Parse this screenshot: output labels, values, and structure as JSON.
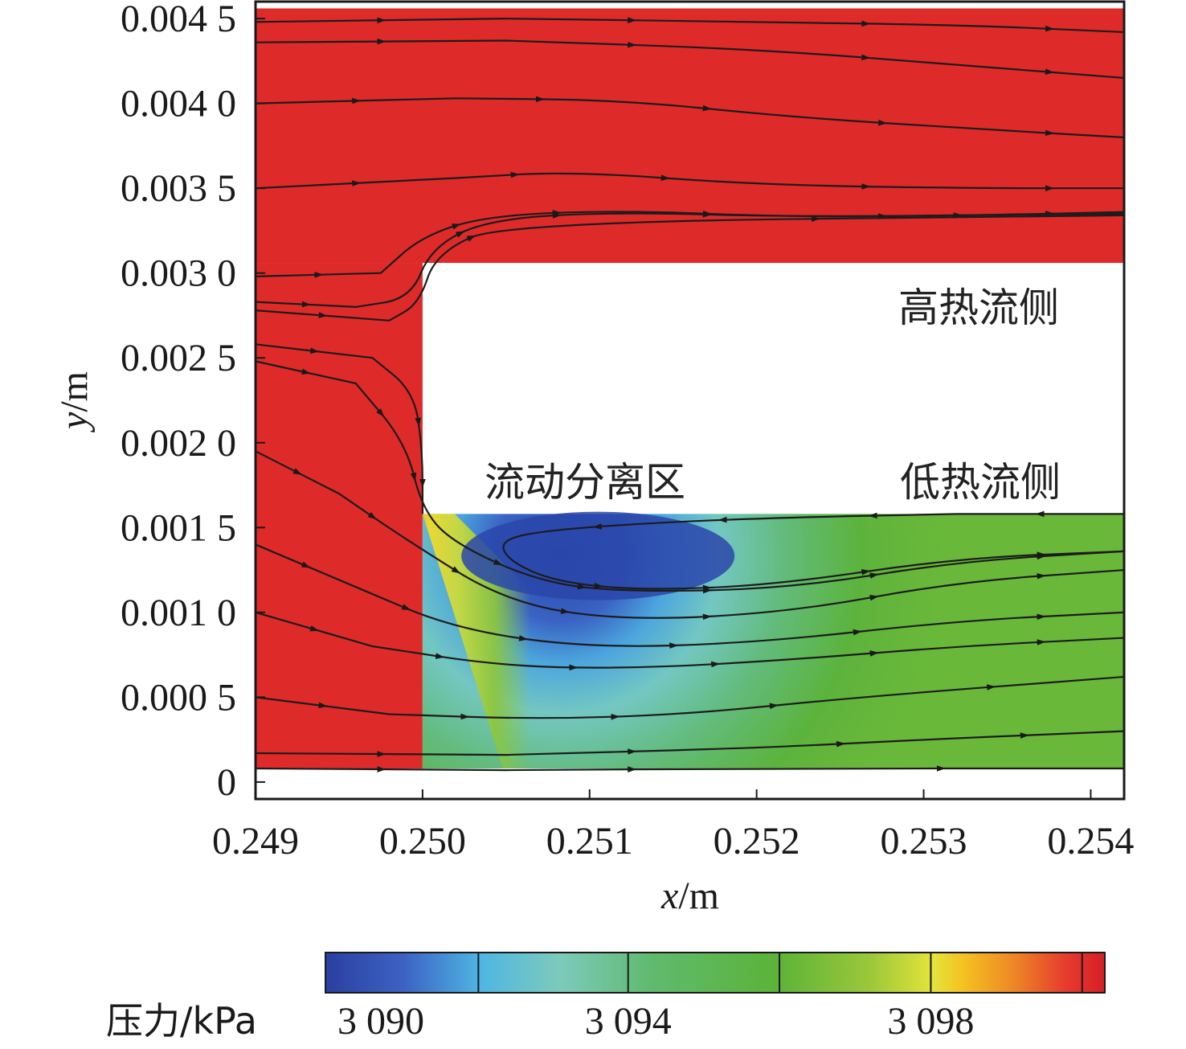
{
  "chart_data": {
    "type": "contour",
    "xlabel_var": "x",
    "xlabel_unit": "/m",
    "ylabel_var": "y",
    "ylabel_unit": "/m",
    "x_ticks": [
      "0.249",
      "0.250",
      "0.251",
      "0.252",
      "0.253",
      "0.254"
    ],
    "x_tick_values": [
      0.249,
      0.25,
      0.251,
      0.252,
      0.253,
      0.254
    ],
    "xlim": [
      0.249,
      0.2542
    ],
    "y_ticks": [
      "0",
      "0.000 5",
      "0.001 0",
      "0.001 5",
      "0.002 0",
      "0.002 5",
      "0.003 0",
      "0.003 5",
      "0.004 0",
      "0.004 5"
    ],
    "y_tick_values": [
      0,
      0.0005,
      0.001,
      0.0015,
      0.002,
      0.0025,
      0.003,
      0.0035,
      0.004,
      0.0045
    ],
    "ylim": [
      -0.0001,
      0.0046
    ],
    "annotations": [
      "高热流侧",
      "流动分离区",
      "低热流侧"
    ],
    "colorbar": {
      "title": "压力/kPa",
      "tick_labels": [
        "3 090",
        "3 094",
        "3 098"
      ],
      "tick_values": [
        3090,
        3094,
        3098
      ],
      "range": [
        3090,
        3100.3
      ]
    },
    "geometry": {
      "upper_channel": {
        "x": [
          0.249,
          0.2542
        ],
        "y": [
          0.00306,
          0.00456
        ]
      },
      "inlet_channel": {
        "x": [
          0.249,
          0.25
        ],
        "y": [
          8e-05,
          0.00306
        ]
      },
      "lower_channel": {
        "x": [
          0.25,
          0.2542
        ],
        "y": [
          8e-05,
          0.00158
        ]
      },
      "separation_center": [
        0.25105,
        0.00138
      ]
    },
    "streamlines": [
      [
        [
          0.249,
          0.00448
        ],
        [
          0.2505,
          0.0045
        ],
        [
          0.252,
          0.00448
        ],
        [
          0.2533,
          0.00446
        ],
        [
          0.2542,
          0.00442
        ]
      ],
      [
        [
          0.249,
          0.00436
        ],
        [
          0.2505,
          0.00437
        ],
        [
          0.252,
          0.00432
        ],
        [
          0.2533,
          0.00422
        ],
        [
          0.2542,
          0.00415
        ]
      ],
      [
        [
          0.249,
          0.004
        ],
        [
          0.2502,
          0.00403
        ],
        [
          0.2512,
          0.00402
        ],
        [
          0.2522,
          0.00392
        ],
        [
          0.2533,
          0.00385
        ],
        [
          0.2542,
          0.0038
        ]
      ],
      [
        [
          0.249,
          0.0035
        ],
        [
          0.2502,
          0.00356
        ],
        [
          0.2509,
          0.0036
        ],
        [
          0.252,
          0.00352
        ],
        [
          0.2533,
          0.0035
        ],
        [
          0.2542,
          0.0035
        ]
      ],
      [
        [
          0.249,
          0.00298
        ],
        [
          0.24975,
          0.003
        ],
        [
          0.25,
          0.00322
        ],
        [
          0.2504,
          0.00334
        ],
        [
          0.2512,
          0.00337
        ],
        [
          0.2522,
          0.00333
        ],
        [
          0.2533,
          0.00334
        ],
        [
          0.2542,
          0.00336
        ]
      ],
      [
        [
          0.249,
          0.00283
        ],
        [
          0.2496,
          0.0028
        ],
        [
          0.24993,
          0.00285
        ],
        [
          0.25005,
          0.00315
        ],
        [
          0.2504,
          0.00332
        ],
        [
          0.2512,
          0.00336
        ],
        [
          0.2522,
          0.00333
        ],
        [
          0.2542,
          0.00335
        ]
      ],
      [
        [
          0.249,
          0.00278
        ],
        [
          0.2498,
          0.00272
        ],
        [
          0.24998,
          0.00282
        ],
        [
          0.25008,
          0.00312
        ],
        [
          0.2505,
          0.0033
        ],
        [
          0.2542,
          0.00334
        ]
      ],
      [
        [
          0.249,
          0.00258
        ],
        [
          0.2497,
          0.0025
        ],
        [
          0.24995,
          0.0023
        ],
        [
          0.25,
          0.00195
        ],
        [
          0.25,
          0.00158
        ]
      ],
      [
        [
          0.249,
          0.00248
        ],
        [
          0.2496,
          0.00235
        ],
        [
          0.2499,
          0.002
        ],
        [
          0.25,
          0.0016
        ],
        [
          0.2502,
          0.0014
        ],
        [
          0.2507,
          0.00118
        ],
        [
          0.2512,
          0.00112
        ],
        [
          0.2522,
          0.00114
        ],
        [
          0.2532,
          0.0013
        ],
        [
          0.2542,
          0.00136
        ]
      ],
      [
        [
          0.249,
          0.00195
        ],
        [
          0.2495,
          0.0017
        ],
        [
          0.2499,
          0.00143
        ],
        [
          0.2505,
          0.00106
        ],
        [
          0.2512,
          0.00095
        ],
        [
          0.2522,
          0.001
        ],
        [
          0.2532,
          0.00118
        ],
        [
          0.2542,
          0.00125
        ]
      ],
      [
        [
          0.249,
          0.0014
        ],
        [
          0.2496,
          0.00115
        ],
        [
          0.2502,
          0.0009
        ],
        [
          0.251,
          0.00079
        ],
        [
          0.252,
          0.00082
        ],
        [
          0.2532,
          0.00095
        ],
        [
          0.2542,
          0.001
        ]
      ],
      [
        [
          0.249,
          0.001
        ],
        [
          0.2497,
          0.0008
        ],
        [
          0.2505,
          0.00068
        ],
        [
          0.2513,
          0.00067
        ],
        [
          0.2522,
          0.00072
        ],
        [
          0.2532,
          0.0008
        ],
        [
          0.2542,
          0.00085
        ]
      ],
      [
        [
          0.249,
          0.0005
        ],
        [
          0.2498,
          0.0004
        ],
        [
          0.2507,
          0.00037
        ],
        [
          0.2516,
          0.0004
        ],
        [
          0.2526,
          0.0005
        ],
        [
          0.2542,
          0.00062
        ]
      ],
      [
        [
          0.249,
          0.00017
        ],
        [
          0.2505,
          0.00016
        ],
        [
          0.252,
          0.0002
        ],
        [
          0.253,
          0.00025
        ],
        [
          0.2542,
          0.0003
        ]
      ],
      [
        [
          0.249,
          8e-05
        ],
        [
          0.2505,
          7e-05
        ],
        [
          0.252,
          8e-05
        ],
        [
          0.2542,
          8e-05
        ]
      ],
      [
        [
          0.2542,
          0.00158
        ],
        [
          0.2532,
          0.00158
        ],
        [
          0.2522,
          0.00156
        ],
        [
          0.2514,
          0.00153
        ],
        [
          0.2507,
          0.00148
        ],
        [
          0.25046,
          0.00142
        ],
        [
          0.25052,
          0.0013
        ],
        [
          0.2508,
          0.00118
        ],
        [
          0.2513,
          0.00113
        ],
        [
          0.2521,
          0.00116
        ],
        [
          0.2532,
          0.00132
        ],
        [
          0.2542,
          0.00136
        ]
      ]
    ]
  }
}
